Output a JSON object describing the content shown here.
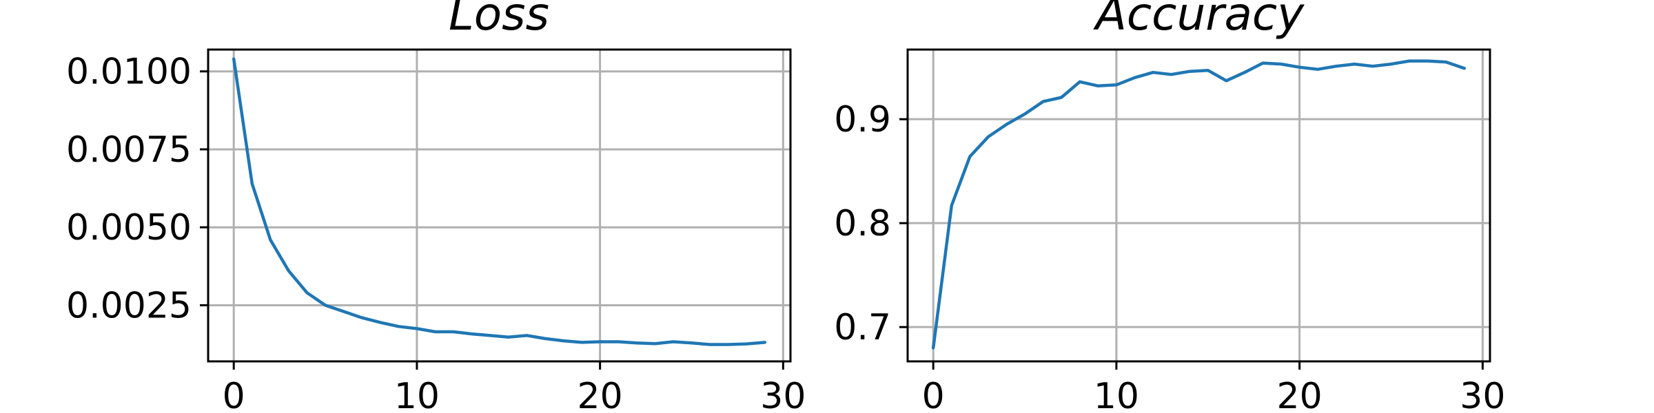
{
  "style": {
    "line_color": "#1f77b4",
    "grid": true
  },
  "chart_data": [
    {
      "type": "line",
      "title": "Loss",
      "xlabel": "",
      "ylabel": "",
      "xlim": [
        -1.4,
        30.4
      ],
      "ylim": [
        0.0007,
        0.0107
      ],
      "xticks": [
        0,
        10,
        20,
        30
      ],
      "yticks": [
        0.0025,
        0.005,
        0.0075,
        0.01
      ],
      "ytick_labels": [
        "0.0025",
        "0.0050",
        "0.0075",
        "0.0100"
      ],
      "grid": true,
      "series": [
        {
          "x": [
            0,
            1,
            2,
            3,
            4,
            5,
            6,
            7,
            8,
            9,
            10,
            11,
            12,
            13,
            14,
            15,
            16,
            17,
            18,
            19,
            20,
            21,
            22,
            23,
            24,
            25,
            26,
            27,
            28,
            29
          ],
          "values": [
            0.0104,
            0.0064,
            0.0046,
            0.0036,
            0.0029,
            0.0025,
            0.0023,
            0.0021,
            0.00195,
            0.00182,
            0.00175,
            0.00165,
            0.00165,
            0.00158,
            0.00153,
            0.00148,
            0.00153,
            0.00143,
            0.00136,
            0.00131,
            0.00133,
            0.00133,
            0.00129,
            0.00127,
            0.00133,
            0.00129,
            0.00124,
            0.00124,
            0.00126,
            0.00131
          ]
        }
      ]
    },
    {
      "type": "line",
      "title": "Accuracy",
      "xlabel": "",
      "ylabel": "",
      "xlim": [
        -1.4,
        30.4
      ],
      "ylim": [
        0.667,
        0.967
      ],
      "xticks": [
        0,
        10,
        20,
        30
      ],
      "yticks": [
        0.7,
        0.8,
        0.9
      ],
      "ytick_labels": [
        "0.7",
        "0.8",
        "0.9"
      ],
      "grid": true,
      "series": [
        {
          "x": [
            0,
            1,
            2,
            3,
            4,
            5,
            6,
            7,
            8,
            9,
            10,
            11,
            12,
            13,
            14,
            15,
            16,
            17,
            18,
            19,
            20,
            21,
            22,
            23,
            24,
            25,
            26,
            27,
            28,
            29
          ],
          "values": [
            0.68,
            0.817,
            0.864,
            0.883,
            0.895,
            0.905,
            0.917,
            0.921,
            0.936,
            0.932,
            0.933,
            0.94,
            0.945,
            0.943,
            0.946,
            0.947,
            0.937,
            0.945,
            0.954,
            0.953,
            0.95,
            0.948,
            0.951,
            0.953,
            0.951,
            0.953,
            0.956,
            0.956,
            0.955,
            0.949
          ]
        }
      ]
    }
  ]
}
